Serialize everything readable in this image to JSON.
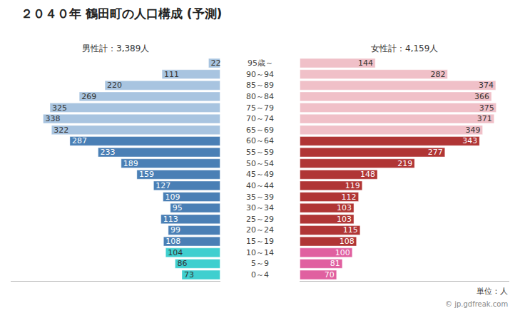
{
  "chart_data": {
    "type": "bar",
    "orientation": "horizontal",
    "title": "２０４０年 鶴田町の人口構成 (予測)",
    "categories": [
      "0～4",
      "5～9",
      "10～14",
      "15～19",
      "20～24",
      "25～29",
      "30～34",
      "35～39",
      "40～44",
      "45～49",
      "50～54",
      "55～59",
      "60～64",
      "65～69",
      "70～74",
      "75～79",
      "80～84",
      "85～89",
      "90～94",
      "95歳～"
    ],
    "series": [
      {
        "name": "男性計：3,389人",
        "colors": [
          "#3fcfcf",
          "#3fcfcf",
          "#3fcfcf",
          "#4a7fb5",
          "#4a7fb5",
          "#4a7fb5",
          "#4a7fb5",
          "#4a7fb5",
          "#4a7fb5",
          "#4a7fb5",
          "#4a7fb5",
          "#4a7fb5",
          "#4a7fb5",
          "#a8c4e0",
          "#a8c4e0",
          "#a8c4e0",
          "#a8c4e0",
          "#a8c4e0",
          "#a8c4e0",
          "#a8c4e0"
        ],
        "values": [
          73,
          86,
          104,
          108,
          99,
          113,
          95,
          109,
          127,
          159,
          189,
          233,
          287,
          322,
          338,
          325,
          269,
          220,
          111,
          22
        ]
      },
      {
        "name": "女性計：4,159人",
        "colors": [
          "#e060a0",
          "#e060a0",
          "#e060a0",
          "#b03535",
          "#b03535",
          "#b03535",
          "#b03535",
          "#b03535",
          "#b03535",
          "#b03535",
          "#b03535",
          "#b03535",
          "#b03535",
          "#f0c0c8",
          "#f0c0c8",
          "#f0c0c8",
          "#f0c0c8",
          "#f0c0c8",
          "#f0c0c8",
          "#f0c0c8"
        ],
        "values": [
          70,
          81,
          100,
          108,
          115,
          103,
          103,
          112,
          119,
          148,
          219,
          277,
          343,
          349,
          371,
          375,
          366,
          374,
          282,
          144
        ]
      }
    ],
    "annotations": [
      "単位：人",
      "© jp.gdfreak.com"
    ],
    "xlim": [
      0,
      400
    ],
    "data_labels": true,
    "tick_labels": false,
    "grid": false
  }
}
